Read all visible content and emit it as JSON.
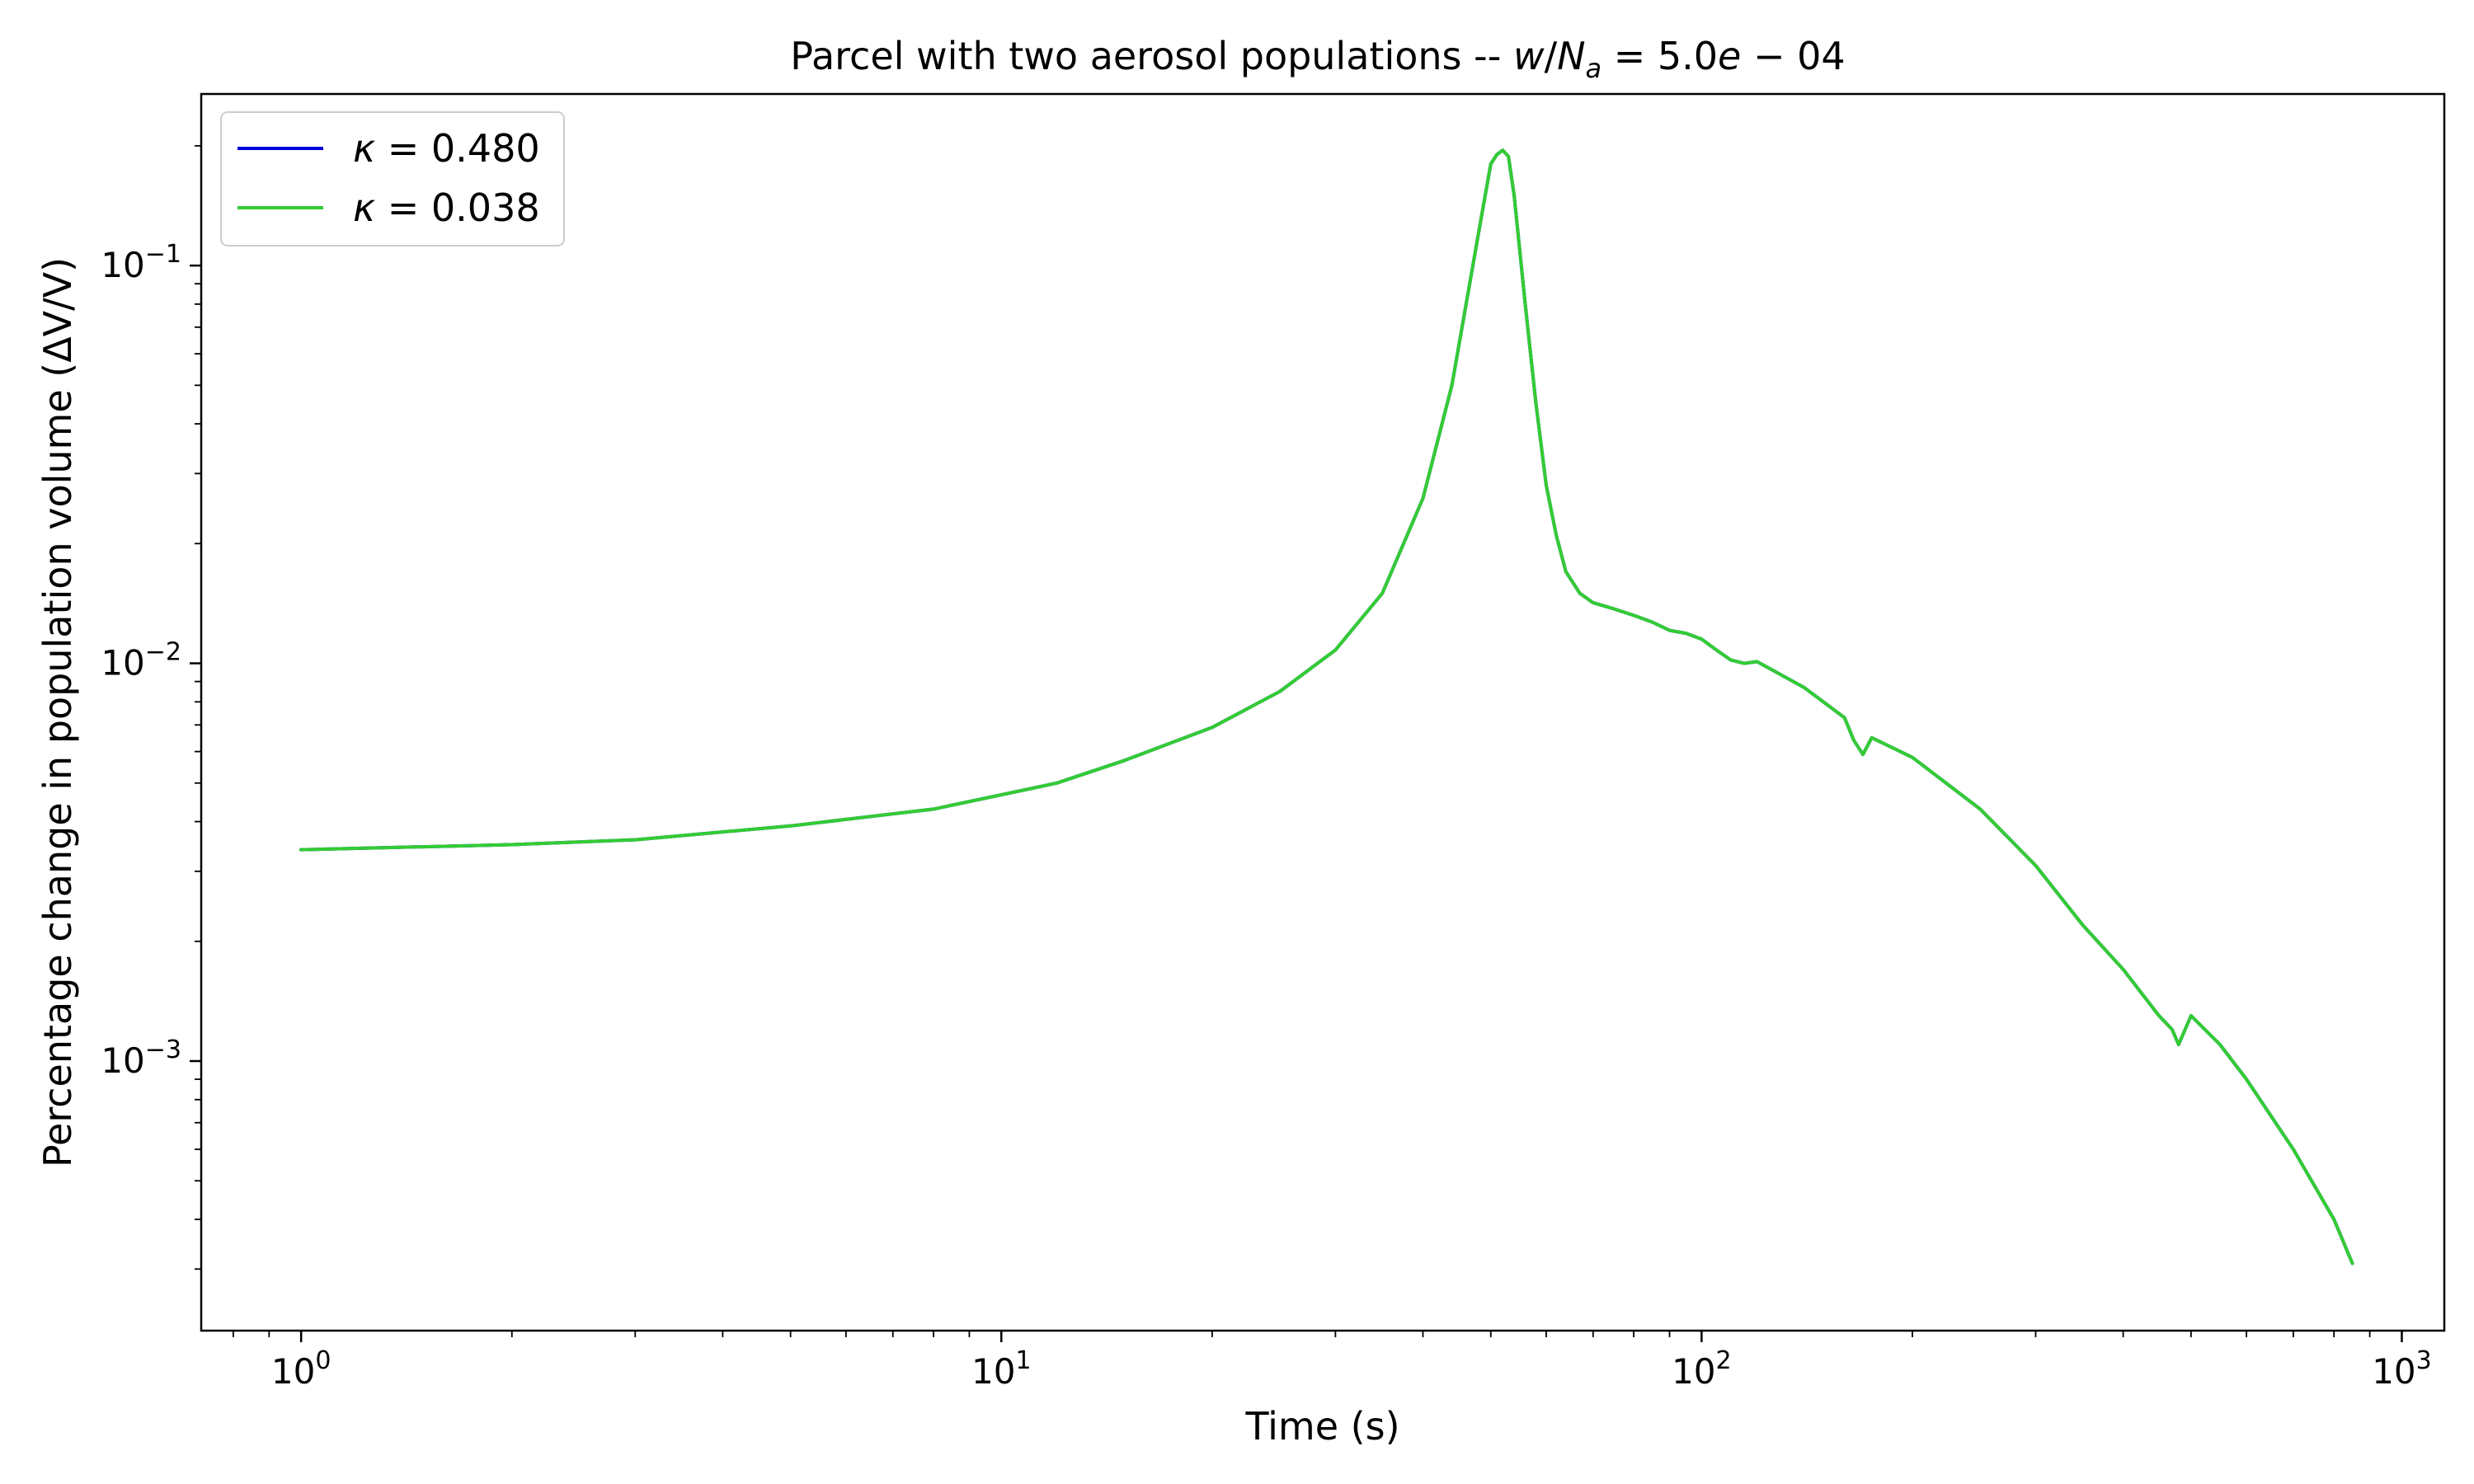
{
  "chart_data": {
    "type": "line",
    "title": "Parcel with two aerosol populations -- w/N_a = 5.0e − 04",
    "title_parts": {
      "prefix": "Parcel with two aerosol populations -- ",
      "w": "w",
      "slash": "/",
      "N": "N",
      "sub": "a",
      "rest": " = 5.0",
      "e": "e",
      "tail": " − 04"
    },
    "xlabel": "Time (s)",
    "ylabel": "Percentage change in population volume (ΔV/V)",
    "xscale": "log",
    "yscale": "log",
    "xlim": [
      0.72,
      1150
    ],
    "ylim": [
      0.00021,
      0.27
    ],
    "x_ticks": [
      {
        "base": "10",
        "exp": "0",
        "value": 1
      },
      {
        "base": "10",
        "exp": "1",
        "value": 10
      },
      {
        "base": "10",
        "exp": "2",
        "value": 100
      },
      {
        "base": "10",
        "exp": "3",
        "value": 1000
      }
    ],
    "y_ticks": [
      {
        "base": "10",
        "exp": "−3",
        "value": 0.001
      },
      {
        "base": "10",
        "exp": "−2",
        "value": 0.01
      },
      {
        "base": "10",
        "exp": "−1",
        "value": 0.1
      }
    ],
    "grid": false,
    "legend_position": "top-left",
    "series": [
      {
        "name": "κ = 0.480",
        "name_parts": {
          "symbol": "κ",
          "value": " = 0.480"
        },
        "color": "#0000dd",
        "x": [
          1,
          2,
          3,
          5,
          8,
          12,
          15,
          20,
          25,
          30,
          35,
          40,
          44,
          48,
          50,
          51,
          52,
          53,
          54,
          56,
          58,
          60,
          62,
          64,
          67,
          70,
          75,
          80,
          85,
          90,
          95,
          100,
          105,
          110,
          115,
          120,
          140,
          160,
          165,
          170,
          175,
          200,
          250,
          300,
          350,
          400,
          450,
          470,
          480,
          500,
          550,
          600,
          700,
          800,
          850
        ],
        "y": [
          0.0034,
          0.0035,
          0.0036,
          0.0039,
          0.0043,
          0.005,
          0.0057,
          0.0069,
          0.0085,
          0.0108,
          0.015,
          0.026,
          0.05,
          0.12,
          0.18,
          0.19,
          0.195,
          0.188,
          0.15,
          0.08,
          0.045,
          0.028,
          0.021,
          0.017,
          0.015,
          0.0142,
          0.0137,
          0.0132,
          0.0127,
          0.0121,
          0.0119,
          0.0115,
          0.0108,
          0.0102,
          0.01,
          0.0101,
          0.0087,
          0.0073,
          0.0064,
          0.0059,
          0.0065,
          0.0058,
          0.0043,
          0.0031,
          0.0022,
          0.0017,
          0.0013,
          0.0012,
          0.0011,
          0.0013,
          0.0011,
          0.0009,
          0.0006,
          0.0004,
          0.00031
        ]
      },
      {
        "name": "κ = 0.038",
        "name_parts": {
          "symbol": "κ",
          "value": " = 0.038"
        },
        "color": "#33cc33",
        "x": [
          1,
          2,
          3,
          5,
          8,
          12,
          15,
          20,
          25,
          30,
          35,
          40,
          44,
          48,
          50,
          51,
          52,
          53,
          54,
          56,
          58,
          60,
          62,
          64,
          67,
          70,
          75,
          80,
          85,
          90,
          95,
          100,
          105,
          110,
          115,
          120,
          140,
          160,
          165,
          170,
          175,
          200,
          250,
          300,
          350,
          400,
          450,
          470,
          480,
          500,
          550,
          600,
          700,
          800,
          850
        ],
        "y": [
          0.0034,
          0.0035,
          0.0036,
          0.0039,
          0.0043,
          0.005,
          0.0057,
          0.0069,
          0.0085,
          0.0108,
          0.015,
          0.026,
          0.05,
          0.12,
          0.18,
          0.19,
          0.195,
          0.188,
          0.15,
          0.08,
          0.045,
          0.028,
          0.021,
          0.017,
          0.015,
          0.0142,
          0.0137,
          0.0132,
          0.0127,
          0.0121,
          0.0119,
          0.0115,
          0.0108,
          0.0102,
          0.01,
          0.0101,
          0.0087,
          0.0073,
          0.0064,
          0.0059,
          0.0065,
          0.0058,
          0.0043,
          0.0031,
          0.0022,
          0.0017,
          0.0013,
          0.0012,
          0.0011,
          0.0013,
          0.0011,
          0.0009,
          0.0006,
          0.0004,
          0.00031
        ]
      }
    ]
  }
}
